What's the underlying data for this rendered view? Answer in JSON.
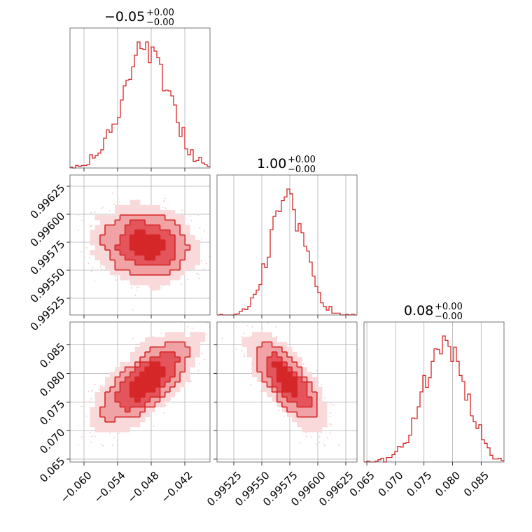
{
  "chart_data": {
    "type": "corner",
    "color": "#d62728",
    "fill_colors": [
      "#f9d9da",
      "#f0a2a5",
      "#e3555b",
      "#d62728"
    ],
    "grid": true,
    "parameters": [
      {
        "title_value": "−0.05",
        "title_upper": "+0.00",
        "title_lower": "−0.00",
        "range": [
          -0.0625,
          -0.0375
        ],
        "mean": -0.049,
        "sd": 0.004,
        "ticks": [
          -0.06,
          -0.054,
          -0.048,
          -0.042
        ],
        "tick_labels": [
          "−0.060",
          "−0.054",
          "−0.048",
          "−0.042"
        ]
      },
      {
        "title_value": "1.00",
        "title_upper": "+0.00",
        "title_lower": "−0.00",
        "range": [
          0.9951,
          0.99635
        ],
        "mean": 0.99573,
        "sd": 0.00015,
        "ticks": [
          0.99525,
          0.9955,
          0.99575,
          0.996,
          0.99625
        ],
        "tick_labels": [
          "0.99525",
          "0.99550",
          "0.99575",
          "0.99600",
          "0.99625"
        ]
      },
      {
        "title_value": "0.08",
        "title_upper": "+0.00",
        "title_lower": "−0.00",
        "range": [
          0.0645,
          0.089
        ],
        "mean": 0.0785,
        "sd": 0.0035,
        "ticks": [
          0.065,
          0.07,
          0.075,
          0.08,
          0.085
        ],
        "tick_labels": [
          "0.065",
          "0.070",
          "0.075",
          "0.080",
          "0.085"
        ]
      }
    ],
    "correlations": {
      "1_0": -0.15,
      "2_0": 0.75,
      "2_1": -0.8
    },
    "histogram_bins": 50,
    "contour_levels": [
      0.5,
      1.0,
      1.5,
      2.0
    ]
  }
}
